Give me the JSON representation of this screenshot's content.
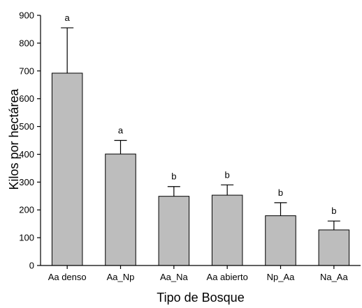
{
  "chart_data": {
    "type": "bar",
    "title": "",
    "xlabel": "Tipo de Bosque",
    "ylabel": "Kilos por hectárea",
    "ylim": [
      0,
      900
    ],
    "yticks": [
      0,
      100,
      200,
      300,
      400,
      500,
      600,
      700,
      800,
      900
    ],
    "categories": [
      "Aa denso",
      "Aa_Np",
      "Aa_Na",
      "Aa abierto",
      "Np_Aa",
      "Na_Aa"
    ],
    "values": [
      692,
      401,
      249,
      253,
      179,
      128
    ],
    "error_upper": [
      855,
      450,
      284,
      290,
      226,
      160
    ],
    "significance_letters": [
      "a",
      "a",
      "b",
      "b",
      "b",
      "b"
    ],
    "bar_color": "#bdbdbd",
    "grid": false,
    "legend": "none"
  }
}
